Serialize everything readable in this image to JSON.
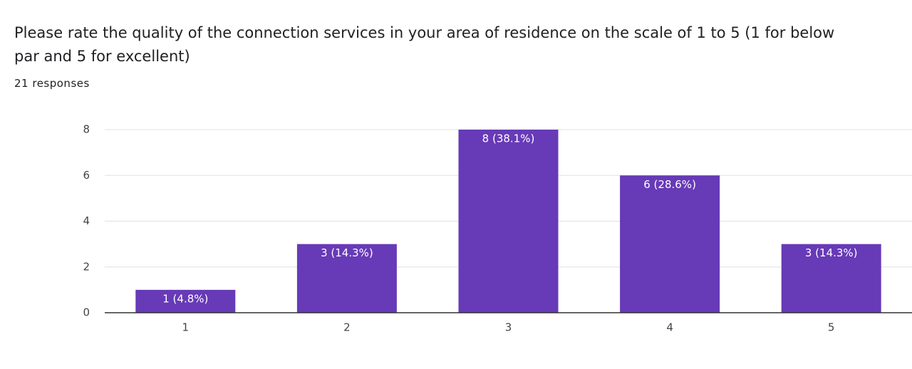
{
  "chart_data": {
    "type": "bar",
    "title": "Please rate the quality of the connection services in your area of residence on the scale of 1 to 5 (1 for below par and 5 for excellent)",
    "subtitle": "21 responses",
    "categories": [
      "1",
      "2",
      "3",
      "4",
      "5"
    ],
    "values": [
      1,
      3,
      8,
      6,
      3
    ],
    "value_labels": [
      "1 (4.8%)",
      "3 (14.3%)",
      "8 (38.1%)",
      "6 (28.6%)",
      "3 (14.3%)"
    ],
    "color": "#673ab7",
    "ylim": [
      0,
      8
    ],
    "yticks": [
      0,
      2,
      4,
      6,
      8
    ],
    "grid": true
  }
}
